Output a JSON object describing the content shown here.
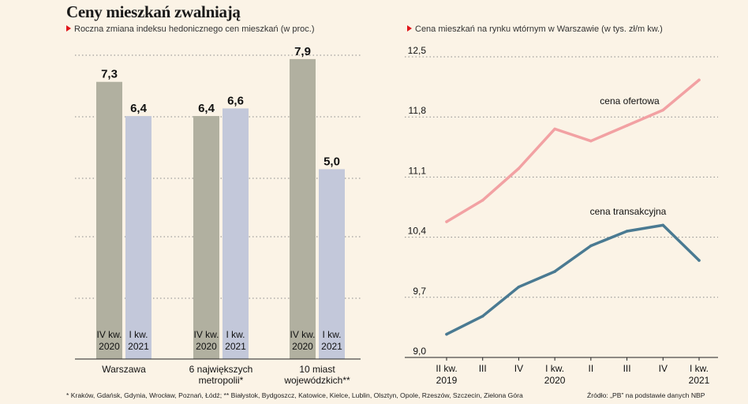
{
  "title": "Ceny mieszkań zwalniają",
  "footnote": "* Kraków, Gdańsk, Gdynia, Wrocław, Poznań, Łódź; ** Białystok, Bydgoszcz, Katowice, Kielce, Lublin, Olsztyn, Opole, Rzeszów, Szczecin, Zielona Góra",
  "source": "Źródło: „PB” na podstawie danych NBP",
  "colors": {
    "bar_prev": "#b1b0a0",
    "bar_curr": "#c3c8da",
    "offer_line": "#f2a1a3",
    "transaction_line": "#4a7a92",
    "accent": "#e0161b",
    "background": "#fbf3e6"
  },
  "chart_data": [
    {
      "type": "bar",
      "subtitle": "Roczna zmiana indeksu hedonicznego cen mieszkań (w proc.)",
      "groups": [
        {
          "label": [
            "Warszawa"
          ],
          "values": [
            7.3,
            6.4
          ],
          "value_labels": [
            "7,3",
            "6,4"
          ]
        },
        {
          "label": [
            "6 największych",
            "metropolii*"
          ],
          "values": [
            6.4,
            6.6
          ],
          "value_labels": [
            "6,4",
            "6,6"
          ]
        },
        {
          "label": [
            "10 miast",
            "wojewódzkich**"
          ],
          "values": [
            7.9,
            5.0
          ],
          "value_labels": [
            "7,9",
            "5,0"
          ]
        }
      ],
      "bar_labels": [
        [
          "IV kw.",
          "2020"
        ],
        [
          "I kw.",
          "2021"
        ]
      ],
      "ylim": [
        0,
        8.5
      ],
      "grid": true
    },
    {
      "type": "line",
      "subtitle": "Cena mieszkań na rynku wtórnym w Warszawie (w tys. zł/m kw.)",
      "x_labels": [
        [
          "II kw.",
          "2019"
        ],
        [
          "III",
          ""
        ],
        [
          "IV",
          ""
        ],
        [
          "I kw.",
          "2020"
        ],
        [
          "II",
          ""
        ],
        [
          "III",
          ""
        ],
        [
          "IV",
          ""
        ],
        [
          "I kw.",
          "2021"
        ]
      ],
      "y_ticks": [
        "12,5",
        "11,8",
        "11,1",
        "10,4",
        "9,7",
        "9,0"
      ],
      "ylim": [
        9.0,
        12.5
      ],
      "grid": true,
      "series": [
        {
          "name": "cena ofertowa",
          "values": [
            10.58,
            10.83,
            11.2,
            11.66,
            11.52,
            11.7,
            11.88,
            12.23
          ]
        },
        {
          "name": "cena transakcyjna",
          "values": [
            9.27,
            9.48,
            9.82,
            10.0,
            10.3,
            10.47,
            10.54,
            10.13
          ]
        }
      ]
    }
  ]
}
